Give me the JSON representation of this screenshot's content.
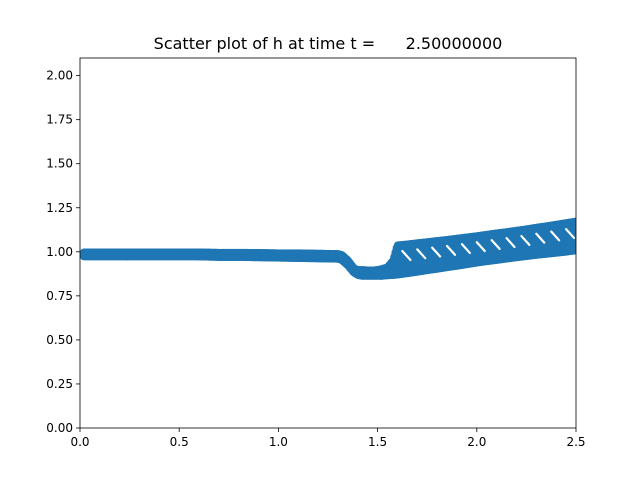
{
  "chart_data": {
    "type": "scatter",
    "title": "Scatter plot of h at time t =      2.50000000",
    "xlabel": "",
    "ylabel": "",
    "xlim": [
      0.0,
      2.5
    ],
    "ylim": [
      0.0,
      2.1
    ],
    "x_ticks": [
      "0.0",
      "0.5",
      "1.0",
      "1.5",
      "2.0",
      "2.5"
    ],
    "y_ticks": [
      "0.00",
      "0.25",
      "0.50",
      "0.75",
      "1.00",
      "1.25",
      "1.50",
      "1.75",
      "2.00"
    ],
    "grid": false,
    "legend": "none",
    "marker_color": "#1f77b4",
    "marker": "circle",
    "series": [
      {
        "x": [
          0.02,
          0.1,
          0.2,
          0.3,
          0.4,
          0.5,
          0.6,
          0.7,
          0.8,
          0.9,
          1.0,
          1.1,
          1.2,
          1.3,
          1.32,
          1.35,
          1.38,
          1.4,
          1.42,
          1.45,
          1.48,
          1.5,
          1.52,
          1.55,
          1.58,
          1.6,
          1.65,
          1.7,
          1.75,
          1.8,
          1.85,
          1.9,
          1.95,
          2.0,
          2.05,
          2.1,
          2.15,
          2.2,
          2.25,
          2.3,
          2.35,
          2.4,
          2.45,
          2.5
        ],
        "y_low": [
          0.975,
          0.975,
          0.975,
          0.975,
          0.975,
          0.975,
          0.975,
          0.972,
          0.972,
          0.97,
          0.968,
          0.966,
          0.964,
          0.962,
          0.955,
          0.925,
          0.885,
          0.87,
          0.865,
          0.865,
          0.865,
          0.865,
          0.865,
          0.868,
          0.87,
          0.872,
          0.88,
          0.888,
          0.897,
          0.905,
          0.914,
          0.922,
          0.931,
          0.94,
          0.948,
          0.955,
          0.963,
          0.97,
          0.977,
          0.984,
          0.99,
          0.996,
          1.002,
          1.01
        ],
        "y_high": [
          0.995,
          0.995,
          0.995,
          0.995,
          0.995,
          0.995,
          0.995,
          0.993,
          0.993,
          0.992,
          0.99,
          0.99,
          0.988,
          0.986,
          0.98,
          0.95,
          0.905,
          0.895,
          0.895,
          0.893,
          0.893,
          0.895,
          0.9,
          0.91,
          0.95,
          1.035,
          1.04,
          1.047,
          1.053,
          1.06,
          1.066,
          1.073,
          1.08,
          1.087,
          1.095,
          1.103,
          1.11,
          1.118,
          1.126,
          1.135,
          1.143,
          1.152,
          1.161,
          1.17
        ]
      }
    ]
  }
}
